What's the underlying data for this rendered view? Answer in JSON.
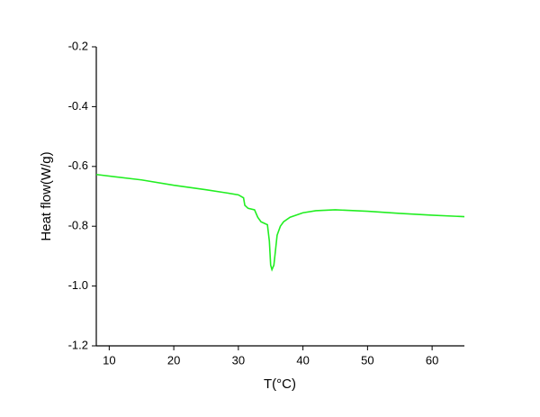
{
  "chart_data": {
    "type": "line",
    "x_label": "T(°C)",
    "y_label": "Heat flow(W/g)",
    "color": "#22ee22",
    "x": [
      8,
      15,
      20,
      25,
      28,
      30,
      30.8,
      31,
      31.5,
      32.5,
      33,
      33.5,
      34,
      34.5,
      34.8,
      35,
      35.2,
      35.5,
      35.8,
      36,
      36.5,
      37,
      38,
      40,
      42,
      45,
      50,
      55,
      60,
      65
    ],
    "values": [
      -0.627,
      -0.645,
      -0.663,
      -0.678,
      -0.688,
      -0.695,
      -0.705,
      -0.73,
      -0.74,
      -0.745,
      -0.77,
      -0.785,
      -0.79,
      -0.795,
      -0.85,
      -0.93,
      -0.945,
      -0.93,
      -0.87,
      -0.83,
      -0.8,
      -0.785,
      -0.77,
      -0.755,
      -0.748,
      -0.745,
      -0.75,
      -0.757,
      -0.763,
      -0.768
    ],
    "xlim": [
      8,
      65
    ],
    "xticks": [
      10,
      20,
      30,
      40,
      50,
      60
    ],
    "ylim": [
      -1.2,
      -0.2
    ],
    "yticks": [
      -1.2,
      {
        "value": -1.0,
        "label": "-1.0"
      },
      -0.8,
      -0.6,
      -0.4,
      -0.2
    ]
  }
}
